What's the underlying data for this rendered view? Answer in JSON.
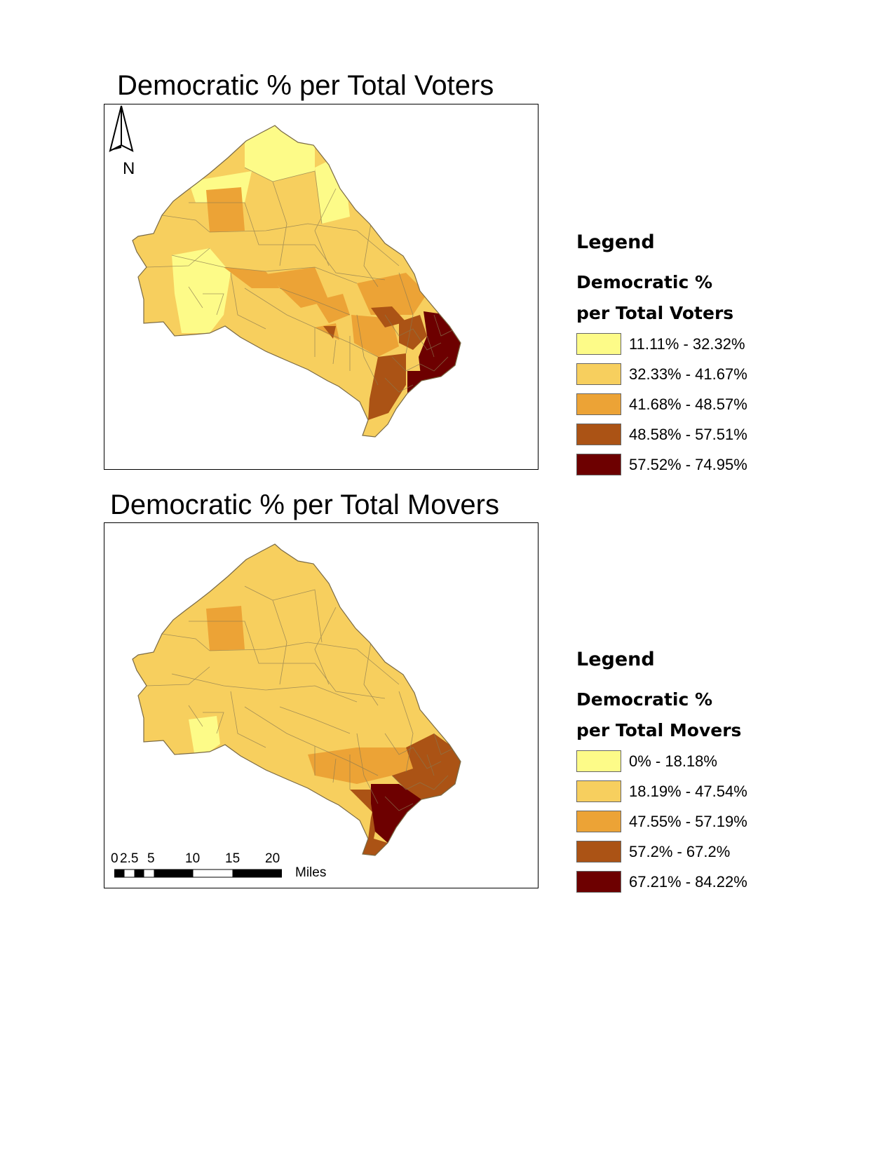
{
  "maps": [
    {
      "title": "Democratic % per Total Voters",
      "legend": {
        "title": "Legend",
        "subtitle_line1": "Democratic %",
        "subtitle_line2": "per Total Voters",
        "classes": [
          {
            "label": "11.11% - 32.32%",
            "color": "#fdfb88"
          },
          {
            "label": "32.33% - 41.67%",
            "color": "#f7cf5e"
          },
          {
            "label": "41.68% - 48.57%",
            "color": "#eca336"
          },
          {
            "label": "48.58% - 57.51%",
            "color": "#ab5315"
          },
          {
            "label": "57.52% - 74.95%",
            "color": "#6d0000"
          }
        ]
      },
      "north_arrow": "N"
    },
    {
      "title": "Democratic % per Total Movers",
      "legend": {
        "title": "Legend",
        "subtitle_line1": "Democratic %",
        "subtitle_line2": "per Total Movers",
        "classes": [
          {
            "label": "0% - 18.18%",
            "color": "#fdfb88"
          },
          {
            "label": "18.19% - 47.54%",
            "color": "#f7cf5e"
          },
          {
            "label": "47.55% - 57.19%",
            "color": "#eca336"
          },
          {
            "label": "57.2% - 67.2%",
            "color": "#ab5315"
          },
          {
            "label": "67.21% - 84.22%",
            "color": "#6d0000"
          }
        ]
      },
      "scale_bar": {
        "ticks": [
          "0",
          "2.5",
          "5",
          "10",
          "15",
          "20"
        ],
        "unit": "Miles"
      }
    }
  ]
}
